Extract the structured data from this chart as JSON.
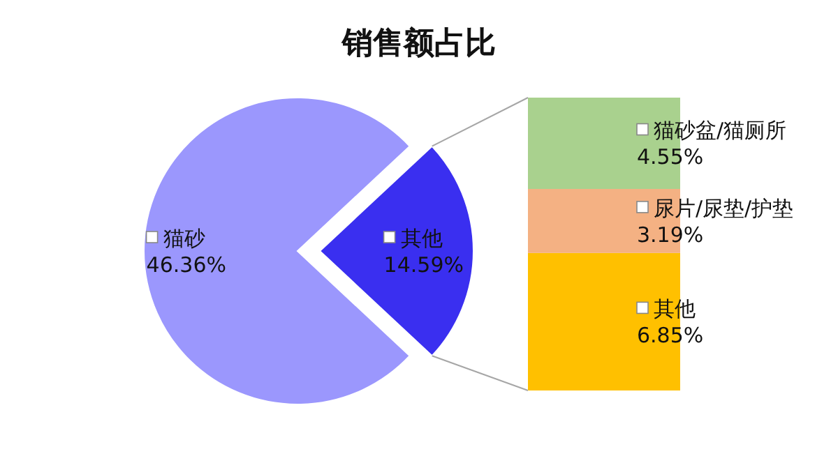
{
  "chart_data": [
    {
      "type": "pie",
      "title": "销售额占比",
      "categories": [
        "猫砂",
        "其他"
      ],
      "values": [
        46.36,
        14.59
      ],
      "colors": [
        "#9b97fd",
        "#3a2ff0"
      ],
      "value_labels": [
        "46.36%",
        "14.59%"
      ]
    },
    {
      "type": "bar",
      "stacked": true,
      "categories": [
        null
      ],
      "series": [
        {
          "name": "其他",
          "color": "#ffc000",
          "values": [
            6.85
          ],
          "value_labels": [
            "6.85%"
          ]
        },
        {
          "name": "尿片/尿垫/护垫",
          "color": "#f4b183",
          "values": [
            3.19
          ],
          "value_labels": [
            "3.19%"
          ]
        },
        {
          "name": "猫砂盆/猫厕所",
          "color": "#a9d18e",
          "values": [
            4.55
          ],
          "value_labels": [
            "4.55%"
          ]
        }
      ]
    }
  ]
}
